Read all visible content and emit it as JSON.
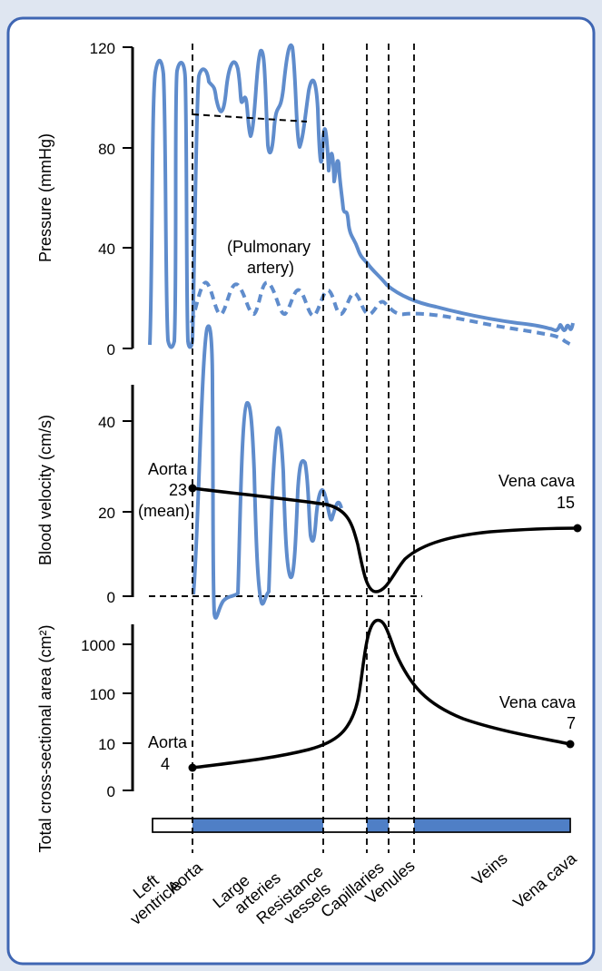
{
  "colors": {
    "frame": "#dfe6f1",
    "panel": "#ffffff",
    "border": "#3f66b3",
    "curve_blue": "#5f8ccc",
    "curve_black": "#000000",
    "bar_fill": "#4f7fc6"
  },
  "axes": {
    "pressure_label": "Pressure (mmHg)",
    "pressure_ticks": [
      "120",
      "80",
      "40",
      "0"
    ],
    "velocity_label": "Blood velocity (cm/s)",
    "velocity_ticks": [
      "40",
      "20",
      "0"
    ],
    "area_label": "Total cross-sectional area (cm²)",
    "area_ticks": [
      "1000",
      "100",
      "10",
      "0"
    ]
  },
  "annotations": {
    "pulmonary_line1": "(Pulmonary",
    "pulmonary_line2": "artery)",
    "aorta_velocity_line1": "Aorta",
    "aorta_velocity_line2": "23",
    "aorta_velocity_line3": "(mean)",
    "vena_cava_velocity_line1": "Vena cava",
    "vena_cava_velocity_line2": "15",
    "aorta_area_line1": "Aorta",
    "aorta_area_line2": "4",
    "vena_cava_area_line1": "Vena cava",
    "vena_cava_area_line2": "7"
  },
  "segments": [
    {
      "label": "Left ventricle",
      "line1": "Left",
      "line2": "ventricle"
    },
    {
      "label": "Aorta",
      "line1": "Aorta",
      "line2": ""
    },
    {
      "label": "Large arteries",
      "line1": "Large",
      "line2": "arteries"
    },
    {
      "label": "Resistance vessels",
      "line1": "Resistance",
      "line2": "vessels"
    },
    {
      "label": "Capillaries",
      "line1": "Capillaries",
      "line2": ""
    },
    {
      "label": "Venules",
      "line1": "Venules",
      "line2": ""
    },
    {
      "label": "Veins",
      "line1": "Veins",
      "line2": ""
    },
    {
      "label": "Vena cava",
      "line1": "Vena cava",
      "line2": ""
    }
  ],
  "chart_data": [
    {
      "type": "line",
      "ylabel": "Pressure (mmHg)",
      "ylim": [
        0,
        120
      ],
      "yticks": [
        0,
        40,
        80,
        120
      ],
      "annotations": [
        "(Pulmonary artery)"
      ]
    },
    {
      "type": "line",
      "ylabel": "Blood velocity (cm/s)",
      "ylim": [
        0,
        40
      ],
      "yticks": [
        0,
        20,
        40
      ],
      "points": [
        {
          "label": "Aorta 23 (mean)",
          "y": 23
        },
        {
          "label": "Vena cava 15",
          "y": 15
        }
      ]
    },
    {
      "type": "line",
      "ylabel": "Total cross-sectional area (cm²)",
      "yscale": "log",
      "yticks": [
        0,
        10,
        100,
        1000
      ],
      "points": [
        {
          "label": "Aorta 4",
          "y": 4
        },
        {
          "label": "Vena cava 7",
          "y": 7
        }
      ]
    }
  ]
}
